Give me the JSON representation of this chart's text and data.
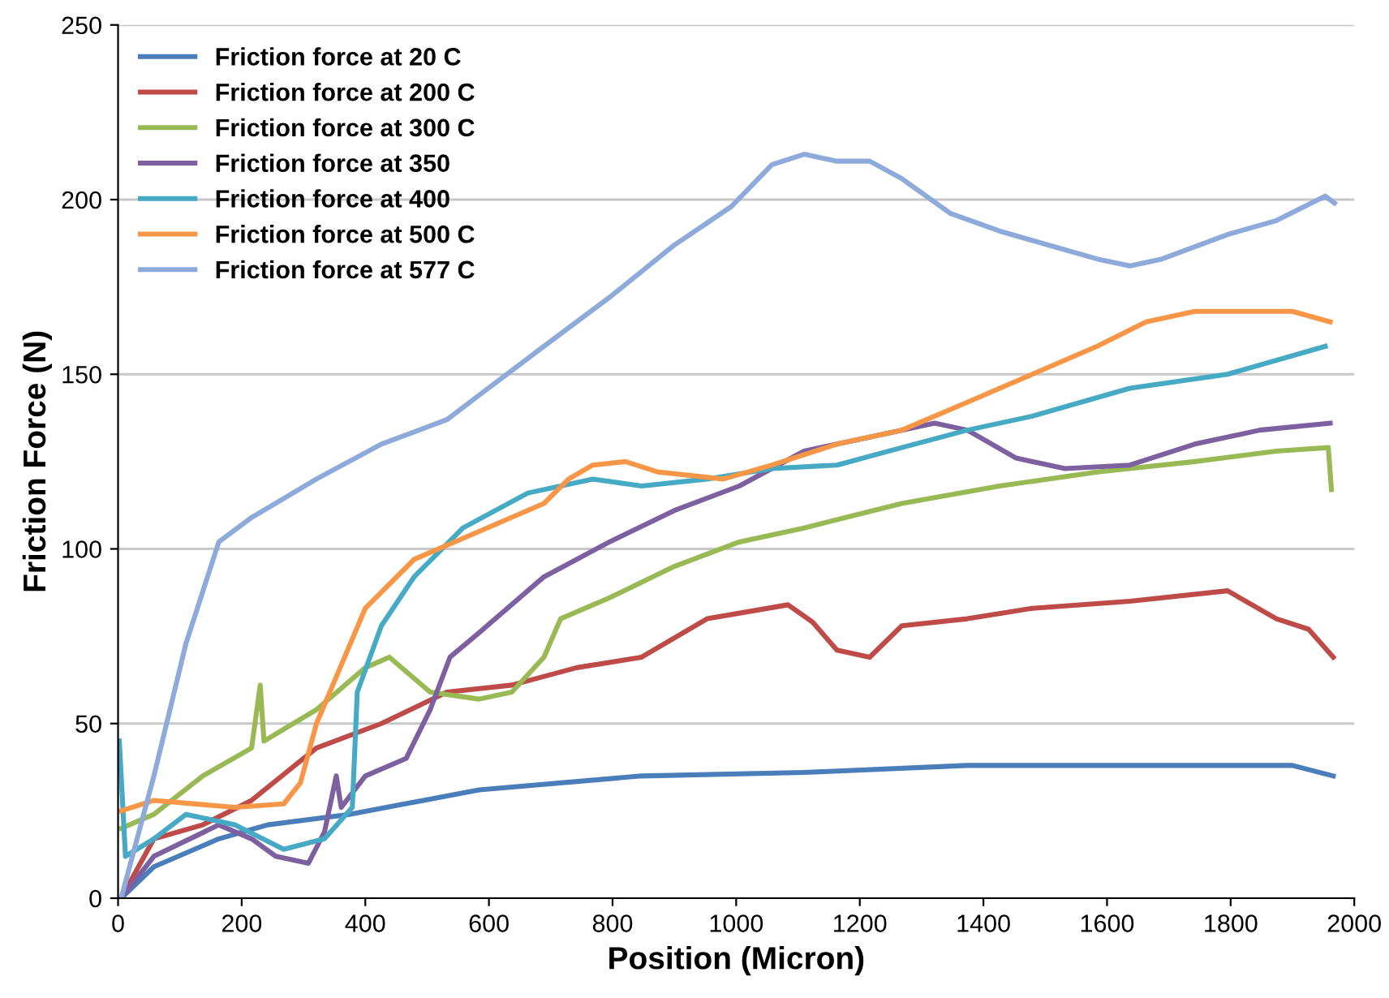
{
  "chart_data": {
    "type": "line",
    "xlabel": "Position (Micron)",
    "ylabel": "Friction Force (N)",
    "xlim": [
      0,
      2000
    ],
    "xticks": [
      0,
      200,
      400,
      600,
      800,
      1000,
      1200,
      1400,
      1600,
      1800,
      2000
    ],
    "ylim": [
      0,
      250
    ],
    "yticks": [
      0,
      50,
      100,
      150,
      200,
      250
    ],
    "grid": "y",
    "legend": "top left",
    "marker": "none",
    "line_style": "solid",
    "series": [
      {
        "name": "Friction force at 20 C",
        "color": "#4a7ebb",
        "x": [
          5,
          58,
          163,
          242,
          374,
          584,
          847,
          1110,
          1374,
          1637,
          1900,
          1966
        ],
        "values": [
          0,
          9,
          17,
          21,
          24,
          31,
          35,
          36,
          38,
          38,
          38,
          35
        ]
      },
      {
        "name": "Friction force at 200 C",
        "color": "#be4b48",
        "x": [
          5,
          58,
          137,
          216,
          321,
          426,
          532,
          637,
          742,
          847,
          953,
          1084,
          1124,
          1163,
          1216,
          1268,
          1374,
          1479,
          1637,
          1795,
          1874,
          1926,
          1966
        ],
        "values": [
          0,
          17,
          21,
          28,
          43,
          50,
          59,
          61,
          66,
          69,
          80,
          84,
          79,
          71,
          69,
          78,
          80,
          83,
          85,
          88,
          80,
          77,
          69
        ]
      },
      {
        "name": "Friction force at 300 C",
        "color": "#98b954",
        "x": [
          5,
          58,
          137,
          216,
          230,
          236,
          321,
          400,
          439,
          505,
          584,
          637,
          689,
          716,
          795,
          900,
          1005,
          1110,
          1268,
          1426,
          1584,
          1742,
          1874,
          1958,
          1963
        ],
        "values": [
          20,
          24,
          35,
          43,
          61,
          45,
          54,
          66,
          69,
          59,
          57,
          59,
          69,
          80,
          86,
          95,
          102,
          106,
          113,
          118,
          122,
          125,
          128,
          129,
          117
        ]
      },
      {
        "name": "Friction force at 350",
        "color": "#7d60a0",
        "x": [
          5,
          58,
          163,
          216,
          255,
          308,
          334,
          353,
          361,
          400,
          466,
          505,
          537,
          584,
          689,
          795,
          900,
          1005,
          1110,
          1216,
          1321,
          1374,
          1453,
          1532,
          1637,
          1742,
          1847,
          1961
        ],
        "values": [
          0,
          12,
          21,
          17,
          12,
          10,
          19,
          35,
          26,
          35,
          40,
          54,
          69,
          76,
          92,
          102,
          111,
          118,
          128,
          132,
          136,
          134,
          126,
          123,
          124,
          130,
          134,
          136
        ]
      },
      {
        "name": "Friction force at 400",
        "color": "#46aac5",
        "x": [
          2,
          12,
          58,
          110,
          189,
          268,
          334,
          379,
          387,
          426,
          479,
          558,
          663,
          768,
          847,
          953,
          1058,
          1163,
          1268,
          1374,
          1479,
          1637,
          1795,
          1953
        ],
        "values": [
          45,
          12,
          17,
          24,
          21,
          14,
          17,
          26,
          59,
          78,
          92,
          106,
          116,
          120,
          118,
          120,
          123,
          124,
          129,
          134,
          138,
          146,
          150,
          158
        ]
      },
      {
        "name": "Friction force at 500 C",
        "color": "#f79646",
        "x": [
          5,
          58,
          189,
          268,
          295,
          321,
          400,
          479,
          584,
          689,
          729,
          768,
          821,
          874,
          979,
          1058,
          1163,
          1268,
          1374,
          1479,
          1584,
          1663,
          1742,
          1900,
          1961
        ],
        "values": [
          25,
          28,
          26,
          27,
          33,
          50,
          83,
          97,
          105,
          113,
          120,
          124,
          125,
          122,
          120,
          124,
          130,
          134,
          142,
          150,
          158,
          165,
          168,
          168,
          165
        ]
      },
      {
        "name": "Friction force at 577 C",
        "color": "#8eaadb",
        "x": [
          5,
          58,
          110,
          163,
          216,
          321,
          426,
          532,
          584,
          689,
          795,
          900,
          992,
          1058,
          1110,
          1163,
          1216,
          1268,
          1347,
          1426,
          1505,
          1584,
          1637,
          1689,
          1795,
          1874,
          1953,
          1968
        ],
        "values": [
          0,
          35,
          73,
          102,
          109,
          120,
          130,
          137,
          144,
          158,
          172,
          187,
          198,
          210,
          213,
          211,
          211,
          206,
          196,
          191,
          187,
          183,
          181,
          183,
          190,
          194,
          201,
          199
        ]
      }
    ]
  }
}
